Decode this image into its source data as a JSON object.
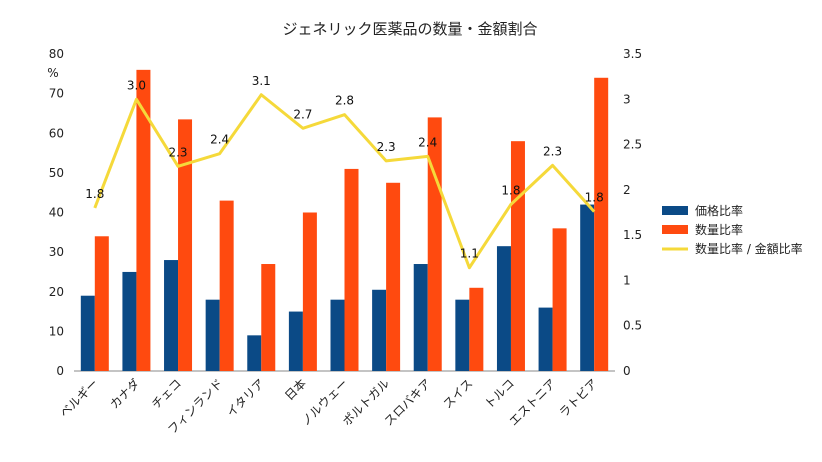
{
  "chart_data": {
    "type": "bar",
    "title": "ジェネリック医薬品の数量・金額割合",
    "y_unit": "%",
    "categories": [
      "ベルギー",
      "カナダ",
      "チェコ",
      "フィンランド",
      "イタリア",
      "日本",
      "ノルウェー",
      "ポルトガル",
      "スロバキア",
      "スイス",
      "トルコ",
      "エストニア",
      "ラトビア"
    ],
    "series": [
      {
        "name": "価格比率",
        "type": "bar",
        "axis": "left",
        "color": "#0b4a86",
        "values": [
          19,
          25,
          28,
          18,
          9,
          15,
          18,
          20.5,
          27,
          18,
          31.5,
          16,
          42
        ]
      },
      {
        "name": "数量比率",
        "type": "bar",
        "axis": "left",
        "color": "#ff4a0f",
        "values": [
          34,
          76,
          63.5,
          43,
          27,
          40,
          51,
          47.5,
          64,
          21,
          58,
          36,
          74
        ]
      },
      {
        "name": "数量比率 / 金額比率",
        "type": "line",
        "axis": "right",
        "color": "#f5d93a",
        "values": [
          1.8,
          3.0,
          2.26,
          2.4,
          3.05,
          2.68,
          2.83,
          2.32,
          2.37,
          1.14,
          1.84,
          2.27,
          1.76
        ],
        "data_labels": [
          "1.8",
          "3.0",
          "2.3",
          "2.4",
          "3.1",
          "2.7",
          "2.8",
          "2.3",
          "2.4",
          "1.1",
          "1.8",
          "2.3",
          "1.8"
        ]
      }
    ],
    "y_left": {
      "min": 0,
      "max": 80,
      "ticks": [
        "0",
        "10",
        "20",
        "30",
        "40",
        "50",
        "60",
        "70",
        "80"
      ]
    },
    "y_right": {
      "min": 0,
      "max": 3.5,
      "ticks": [
        "0",
        "0.5",
        "1",
        "1.5",
        "2",
        "2.5",
        "3",
        "3.5"
      ]
    },
    "grid": false,
    "legend_position": "right"
  }
}
